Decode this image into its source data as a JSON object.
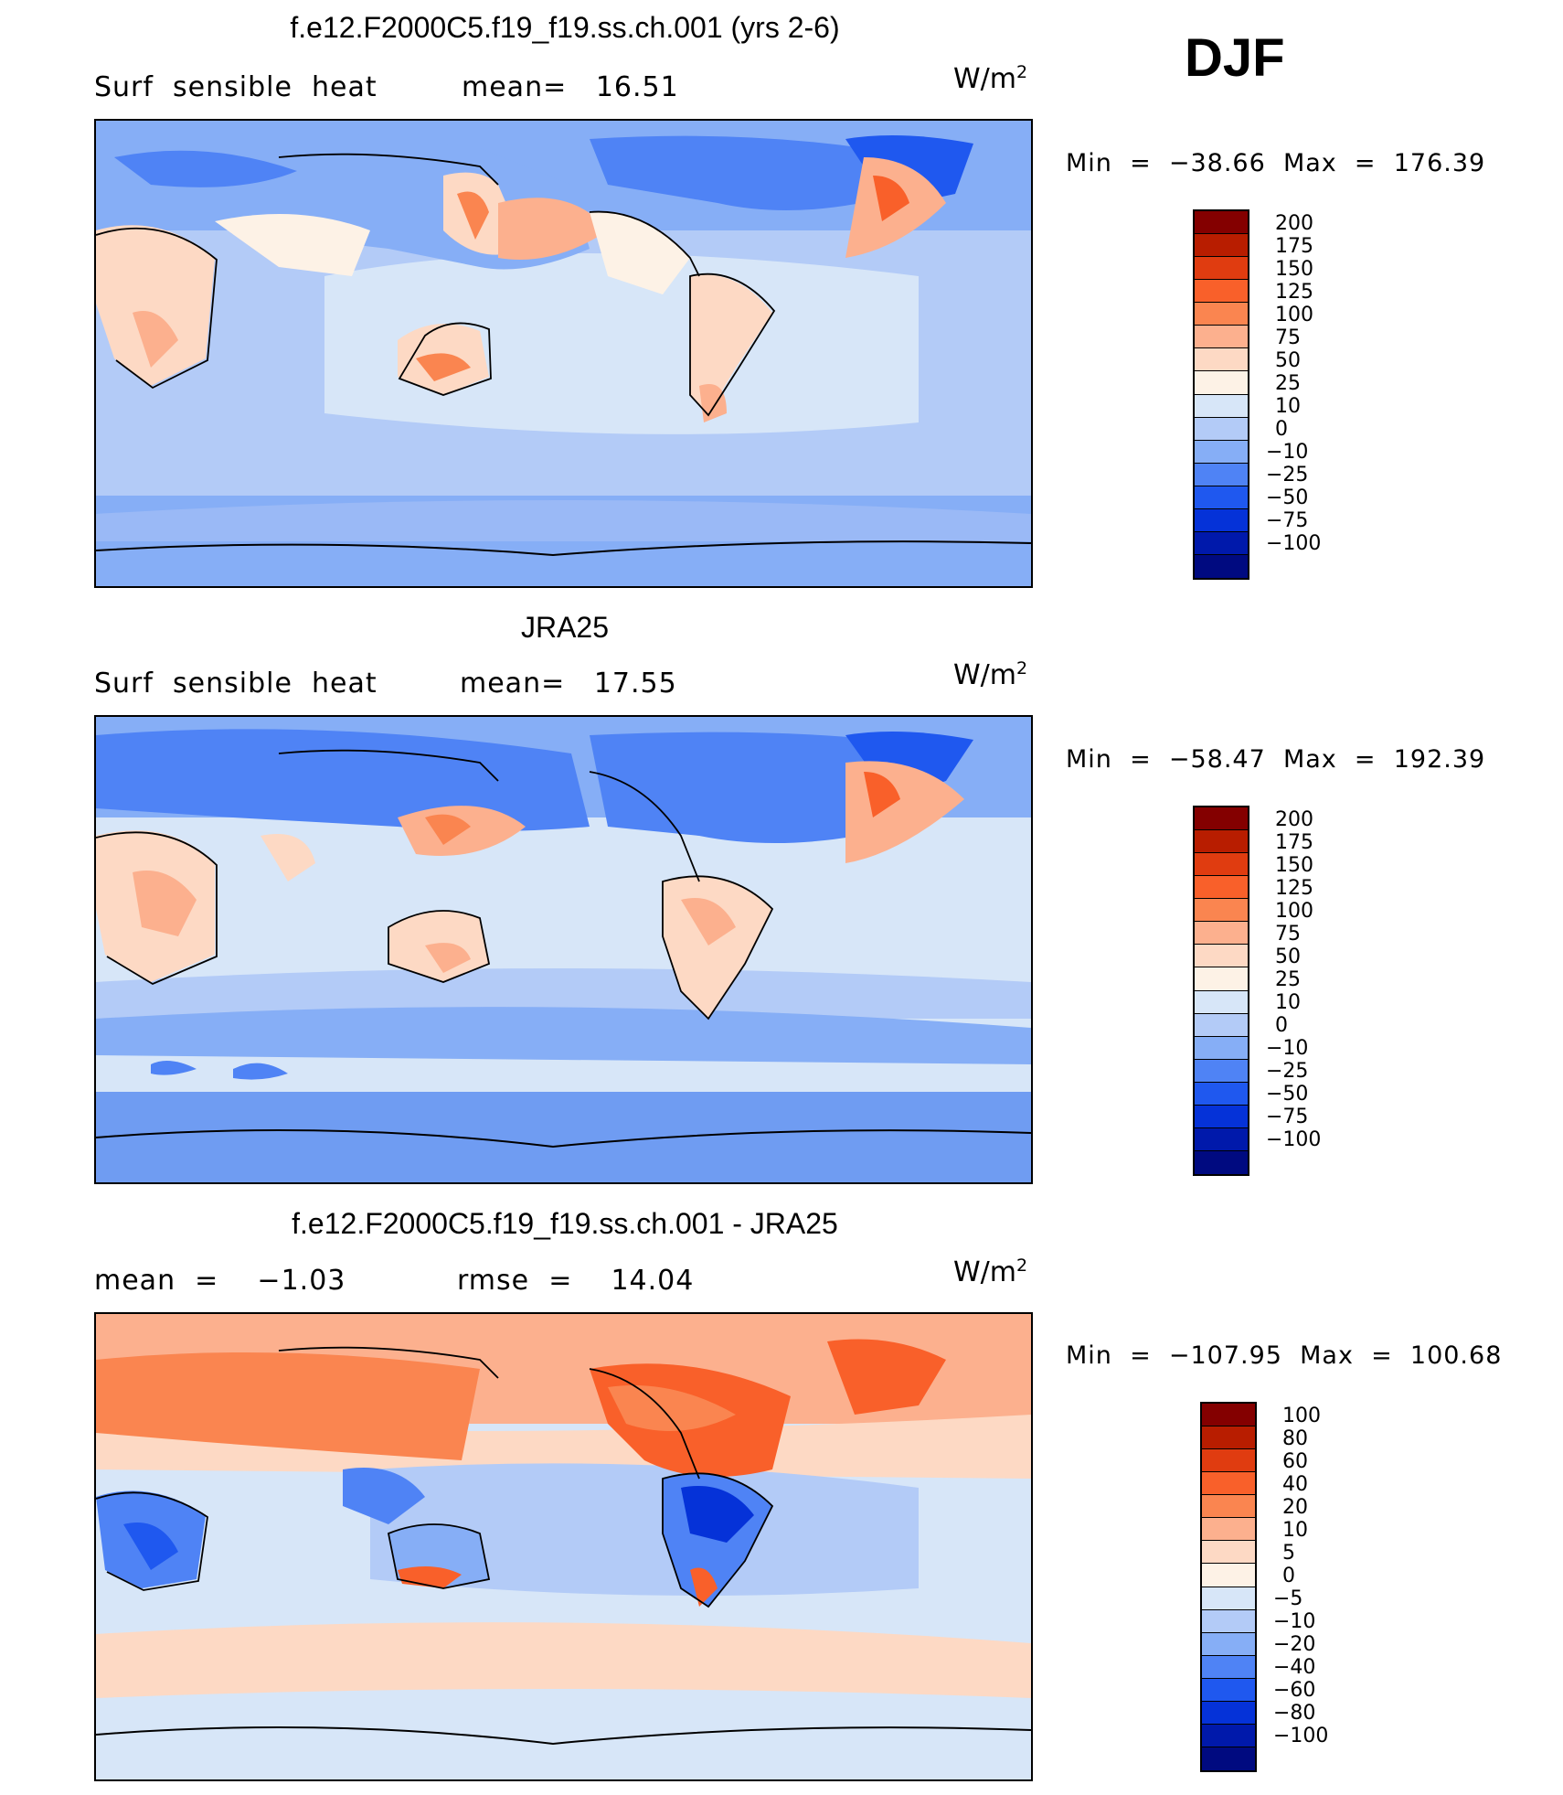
{
  "season": "DJF",
  "panels": [
    {
      "title": "f.e12.F2000C5.f19_f19.ss.ch.001 (yrs 2-6)",
      "left_label": "Surf  sensible  heat",
      "center_label": "mean=   16.51",
      "units": "W/m",
      "units_sup": "2",
      "minmax": "Min  =  −38.66  Max  =  176.39",
      "colorbar": {
        "colors": [
          "#840000",
          "#b81d00",
          "#e03c10",
          "#f9602a",
          "#fa8550",
          "#fcb08e",
          "#fdd9c4",
          "#fdf2e6",
          "#d7e6f8",
          "#b3cbf7",
          "#86aef6",
          "#4f83f5",
          "#1f58ef",
          "#0532d8",
          "#0019ab",
          "#000a80"
        ],
        "labels": [
          "200",
          "175",
          "150",
          "125",
          "100",
          "75",
          "50",
          "25",
          "10",
          "0",
          "−10",
          "−25",
          "−50",
          "−75",
          "−100"
        ]
      }
    },
    {
      "title": "JRA25",
      "left_label": "Surf  sensible  heat",
      "center_label": "mean=   17.55",
      "units": "W/m",
      "units_sup": "2",
      "minmax": "Min  =  −58.47  Max  =  192.39",
      "colorbar": {
        "colors": [
          "#840000",
          "#b81d00",
          "#e03c10",
          "#f9602a",
          "#fa8550",
          "#fcb08e",
          "#fdd9c4",
          "#fdf2e6",
          "#d7e6f8",
          "#b3cbf7",
          "#86aef6",
          "#4f83f5",
          "#1f58ef",
          "#0532d8",
          "#0019ab",
          "#000a80"
        ],
        "labels": [
          "200",
          "175",
          "150",
          "125",
          "100",
          "75",
          "50",
          "25",
          "10",
          "0",
          "−10",
          "−25",
          "−50",
          "−75",
          "−100"
        ]
      }
    },
    {
      "title": "f.e12.F2000C5.f19_f19.ss.ch.001 - JRA25",
      "left_label": "mean  =    −1.03",
      "center_label": "rmse  =    14.04",
      "units": "W/m",
      "units_sup": "2",
      "minmax": "Min  =  −107.95  Max  =  100.68",
      "colorbar": {
        "colors": [
          "#840000",
          "#b81d00",
          "#e03c10",
          "#f9602a",
          "#fa8550",
          "#fcb08e",
          "#fdd9c4",
          "#fdf2e6",
          "#d7e6f8",
          "#b3cbf7",
          "#86aef6",
          "#4f83f5",
          "#1f58ef",
          "#0532d8",
          "#0019ab",
          "#000a80"
        ],
        "labels": [
          "100",
          "80",
          "60",
          "40",
          "20",
          "10",
          "5",
          "0",
          "−5",
          "−10",
          "−20",
          "−40",
          "−60",
          "−80",
          "−100"
        ]
      }
    }
  ]
}
